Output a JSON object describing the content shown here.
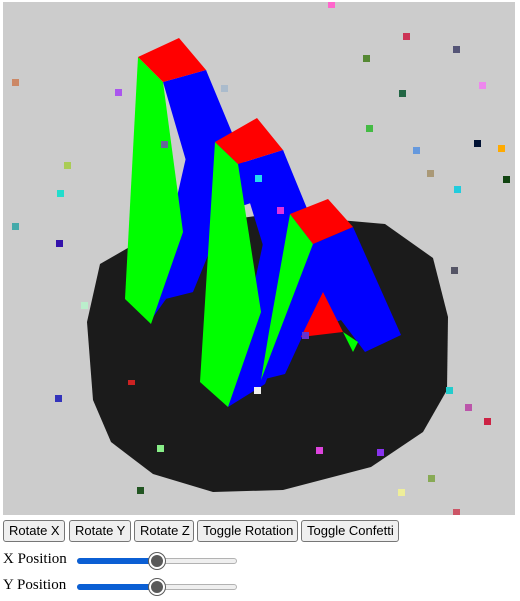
{
  "scene": {
    "background": "#cccccc",
    "colors": {
      "pedestal": "#1b1b1b",
      "letter_front": "#0000ff",
      "letter_side": "#00ff00",
      "letter_top": "#ff0000"
    }
  },
  "controls": {
    "buttons": [
      {
        "label": "Rotate X"
      },
      {
        "label": "Rotate Y"
      },
      {
        "label": "Rotate Z"
      },
      {
        "label": "Toggle Rotation"
      },
      {
        "label": "Toggle Confetti"
      }
    ]
  },
  "sliders": {
    "x": {
      "label": "X Position",
      "value": 0.5
    },
    "y": {
      "label": "Y Position",
      "value": 0.5
    }
  }
}
